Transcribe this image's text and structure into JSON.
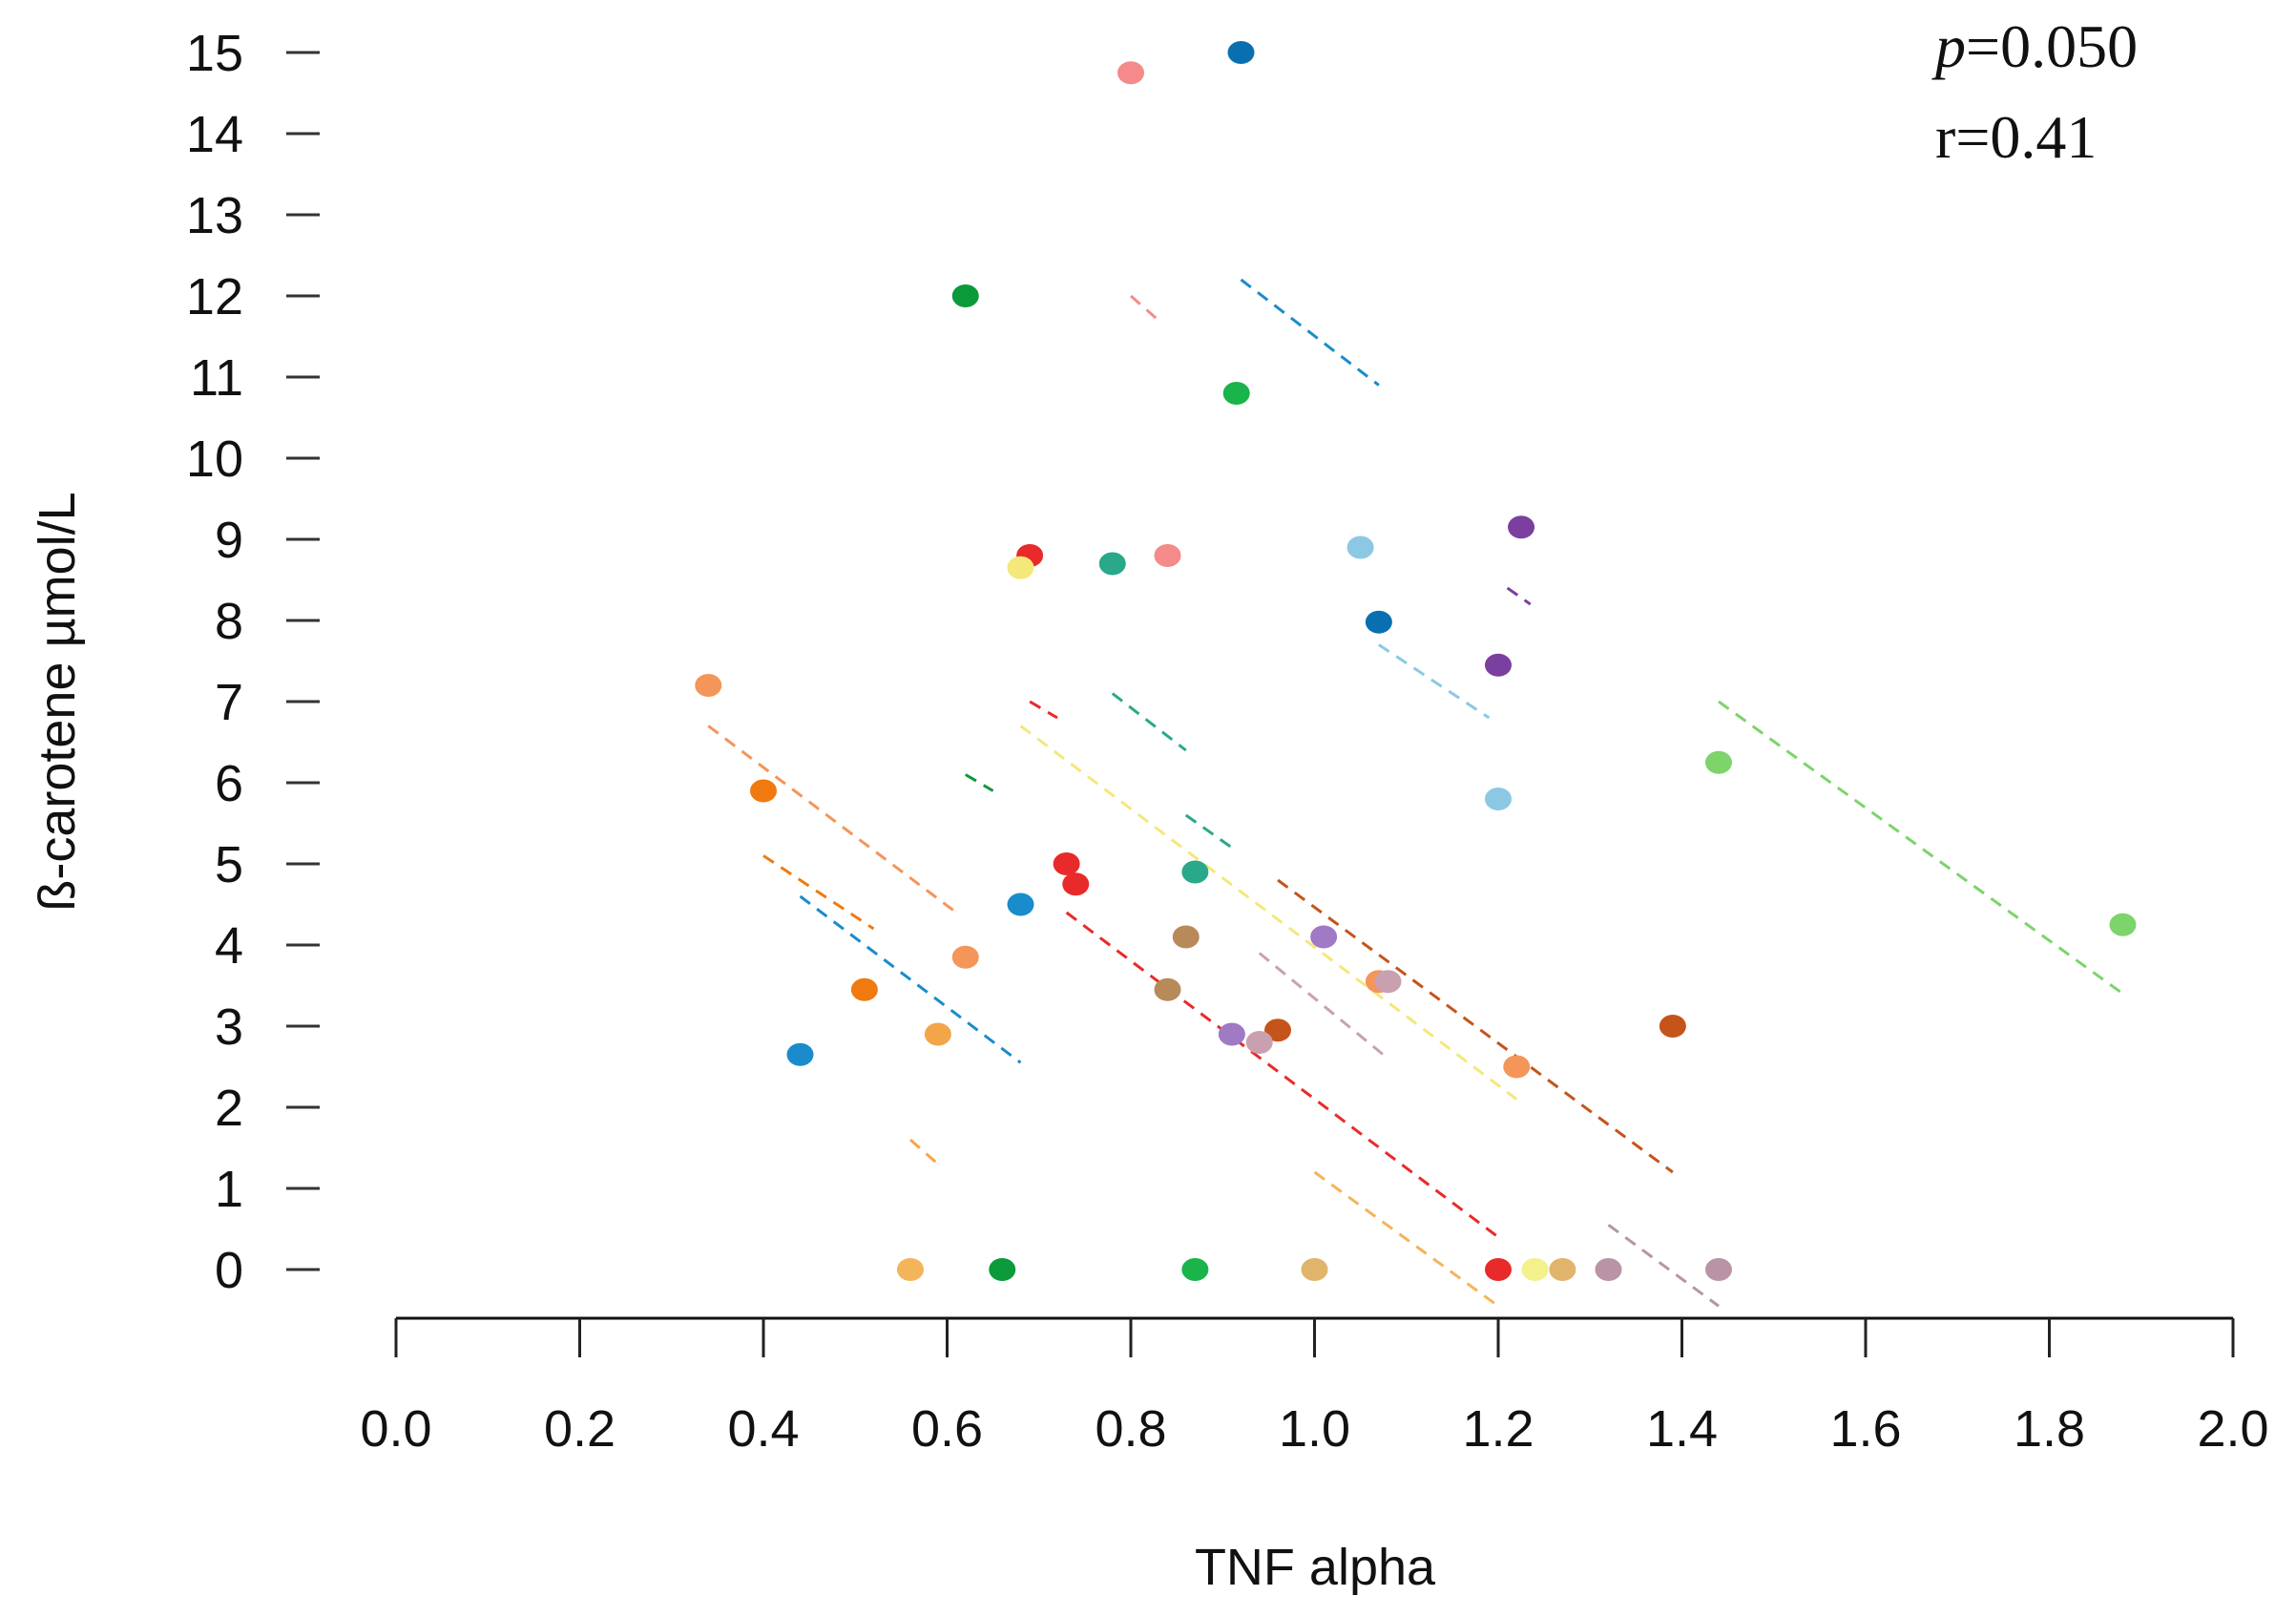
{
  "chart_data": {
    "type": "scatter",
    "title": "",
    "xlabel": "TNF alpha",
    "ylabel": "ß-carotene µmol/L",
    "xlim": [
      0.0,
      2.0
    ],
    "ylim": [
      0,
      15
    ],
    "xticks": [
      "0.0",
      "0.2",
      "0.4",
      "0.6",
      "0.8",
      "1.0",
      "1.2",
      "1.4",
      "1.6",
      "1.8",
      "2.0"
    ],
    "yticks": [
      "0",
      "1",
      "2",
      "3",
      "4",
      "5",
      "6",
      "7",
      "8",
      "9",
      "10",
      "11",
      "12",
      "13",
      "14",
      "15"
    ],
    "grid": false,
    "annotations": {
      "p_symbol": "p",
      "p_value": "=0.050",
      "r_text": "r=0.41"
    },
    "points": [
      {
        "x": 0.92,
        "y": 15.0,
        "color": "#0a6fb0"
      },
      {
        "x": 0.8,
        "y": 14.75,
        "color": "#f48a8a"
      },
      {
        "x": 0.62,
        "y": 12.0,
        "color": "#0a9a3a"
      },
      {
        "x": 0.915,
        "y": 10.8,
        "color": "#19b44a"
      },
      {
        "x": 1.225,
        "y": 9.15,
        "color": "#7b3fa0"
      },
      {
        "x": 0.69,
        "y": 8.8,
        "color": "#e82a2a"
      },
      {
        "x": 0.84,
        "y": 8.8,
        "color": "#f48a8a"
      },
      {
        "x": 0.78,
        "y": 8.7,
        "color": "#2aa88a"
      },
      {
        "x": 0.68,
        "y": 8.65,
        "color": "#f4e87a"
      },
      {
        "x": 1.05,
        "y": 8.9,
        "color": "#8cc8e4"
      },
      {
        "x": 1.07,
        "y": 7.98,
        "color": "#0a6fb0"
      },
      {
        "x": 1.2,
        "y": 7.45,
        "color": "#7b3fa0"
      },
      {
        "x": 0.34,
        "y": 7.2,
        "color": "#f4955a"
      },
      {
        "x": 1.44,
        "y": 6.25,
        "color": "#7cd46a"
      },
      {
        "x": 0.4,
        "y": 5.9,
        "color": "#f07a10"
      },
      {
        "x": 1.2,
        "y": 5.8,
        "color": "#8cc8e4"
      },
      {
        "x": 0.73,
        "y": 5.0,
        "color": "#e82a2a"
      },
      {
        "x": 0.74,
        "y": 4.75,
        "color": "#e82a2a"
      },
      {
        "x": 0.87,
        "y": 4.9,
        "color": "#2aa88a"
      },
      {
        "x": 0.68,
        "y": 4.5,
        "color": "#1a8ccc"
      },
      {
        "x": 1.88,
        "y": 4.25,
        "color": "#7cd46a"
      },
      {
        "x": 0.86,
        "y": 4.1,
        "color": "#b88a5a"
      },
      {
        "x": 1.01,
        "y": 4.1,
        "color": "#a07ac4"
      },
      {
        "x": 0.62,
        "y": 3.85,
        "color": "#f4955a"
      },
      {
        "x": 1.07,
        "y": 3.55,
        "color": "#f4955a"
      },
      {
        "x": 1.08,
        "y": 3.55,
        "color": "#c9a0b0"
      },
      {
        "x": 0.51,
        "y": 3.45,
        "color": "#f07a10"
      },
      {
        "x": 0.84,
        "y": 3.45,
        "color": "#b88a5a"
      },
      {
        "x": 1.39,
        "y": 3.0,
        "color": "#c4541a"
      },
      {
        "x": 0.96,
        "y": 2.95,
        "color": "#c4541a"
      },
      {
        "x": 0.91,
        "y": 2.9,
        "color": "#a07ac4"
      },
      {
        "x": 0.94,
        "y": 2.8,
        "color": "#c9a0b0"
      },
      {
        "x": 0.59,
        "y": 2.9,
        "color": "#f4a54a"
      },
      {
        "x": 0.44,
        "y": 2.65,
        "color": "#1a8ccc"
      },
      {
        "x": 1.22,
        "y": 2.5,
        "color": "#f4955a"
      },
      {
        "x": 0.56,
        "y": 0.0,
        "color": "#f4b45a"
      },
      {
        "x": 0.66,
        "y": 0.0,
        "color": "#0a9a3a"
      },
      {
        "x": 0.87,
        "y": 0.0,
        "color": "#19b44a"
      },
      {
        "x": 1.0,
        "y": 0.0,
        "color": "#e0b46a"
      },
      {
        "x": 1.2,
        "y": 0.0,
        "color": "#e82a2a"
      },
      {
        "x": 1.24,
        "y": 0.0,
        "color": "#f4f08a"
      },
      {
        "x": 1.27,
        "y": 0.0,
        "color": "#e0b46a"
      },
      {
        "x": 1.32,
        "y": 0.0,
        "color": "#b894a4"
      },
      {
        "x": 1.44,
        "y": 0.0,
        "color": "#b894a4"
      }
    ],
    "dashed_segments": [
      {
        "x1": 0.34,
        "y1": 6.7,
        "x2": 0.61,
        "y2": 4.4,
        "color": "#f4955a"
      },
      {
        "x1": 0.4,
        "y1": 5.1,
        "x2": 0.52,
        "y2": 4.2,
        "color": "#f07a10"
      },
      {
        "x1": 0.44,
        "y1": 4.6,
        "x2": 0.68,
        "y2": 2.55,
        "color": "#1a8ccc"
      },
      {
        "x1": 0.56,
        "y1": 1.6,
        "x2": 0.59,
        "y2": 1.3,
        "color": "#f4a54a"
      },
      {
        "x1": 0.62,
        "y1": 6.1,
        "x2": 0.65,
        "y2": 5.9,
        "color": "#0a9a3a"
      },
      {
        "x1": 0.69,
        "y1": 7.0,
        "x2": 0.72,
        "y2": 6.8,
        "color": "#e82a2a"
      },
      {
        "x1": 0.68,
        "y1": 6.7,
        "x2": 1.22,
        "y2": 2.1,
        "color": "#f4e87a"
      },
      {
        "x1": 0.73,
        "y1": 4.4,
        "x2": 1.2,
        "y2": 0.4,
        "color": "#e82a2a"
      },
      {
        "x1": 0.78,
        "y1": 7.1,
        "x2": 0.86,
        "y2": 6.4,
        "color": "#2aa88a"
      },
      {
        "x1": 0.8,
        "y1": 12.0,
        "x2": 0.83,
        "y2": 11.7,
        "color": "#f48a8a"
      },
      {
        "x1": 0.86,
        "y1": 5.6,
        "x2": 0.91,
        "y2": 5.2,
        "color": "#2aa88a"
      },
      {
        "x1": 0.92,
        "y1": 12.2,
        "x2": 1.07,
        "y2": 10.9,
        "color": "#1a8ccc"
      },
      {
        "x1": 0.94,
        "y1": 3.9,
        "x2": 1.08,
        "y2": 2.6,
        "color": "#c9a0b0"
      },
      {
        "x1": 0.96,
        "y1": 4.8,
        "x2": 1.39,
        "y2": 1.2,
        "color": "#c4541a"
      },
      {
        "x1": 1.0,
        "y1": 1.2,
        "x2": 1.2,
        "y2": -0.45,
        "color": "#f4b45a"
      },
      {
        "x1": 1.07,
        "y1": 7.7,
        "x2": 1.19,
        "y2": 6.8,
        "color": "#8cc8e4"
      },
      {
        "x1": 1.21,
        "y1": 8.4,
        "x2": 1.235,
        "y2": 8.2,
        "color": "#7b3fa0"
      },
      {
        "x1": 1.32,
        "y1": 0.55,
        "x2": 1.44,
        "y2": -0.45,
        "color": "#b894a4"
      },
      {
        "x1": 1.44,
        "y1": 7.0,
        "x2": 1.88,
        "y2": 3.4,
        "color": "#7cd46a"
      }
    ]
  }
}
